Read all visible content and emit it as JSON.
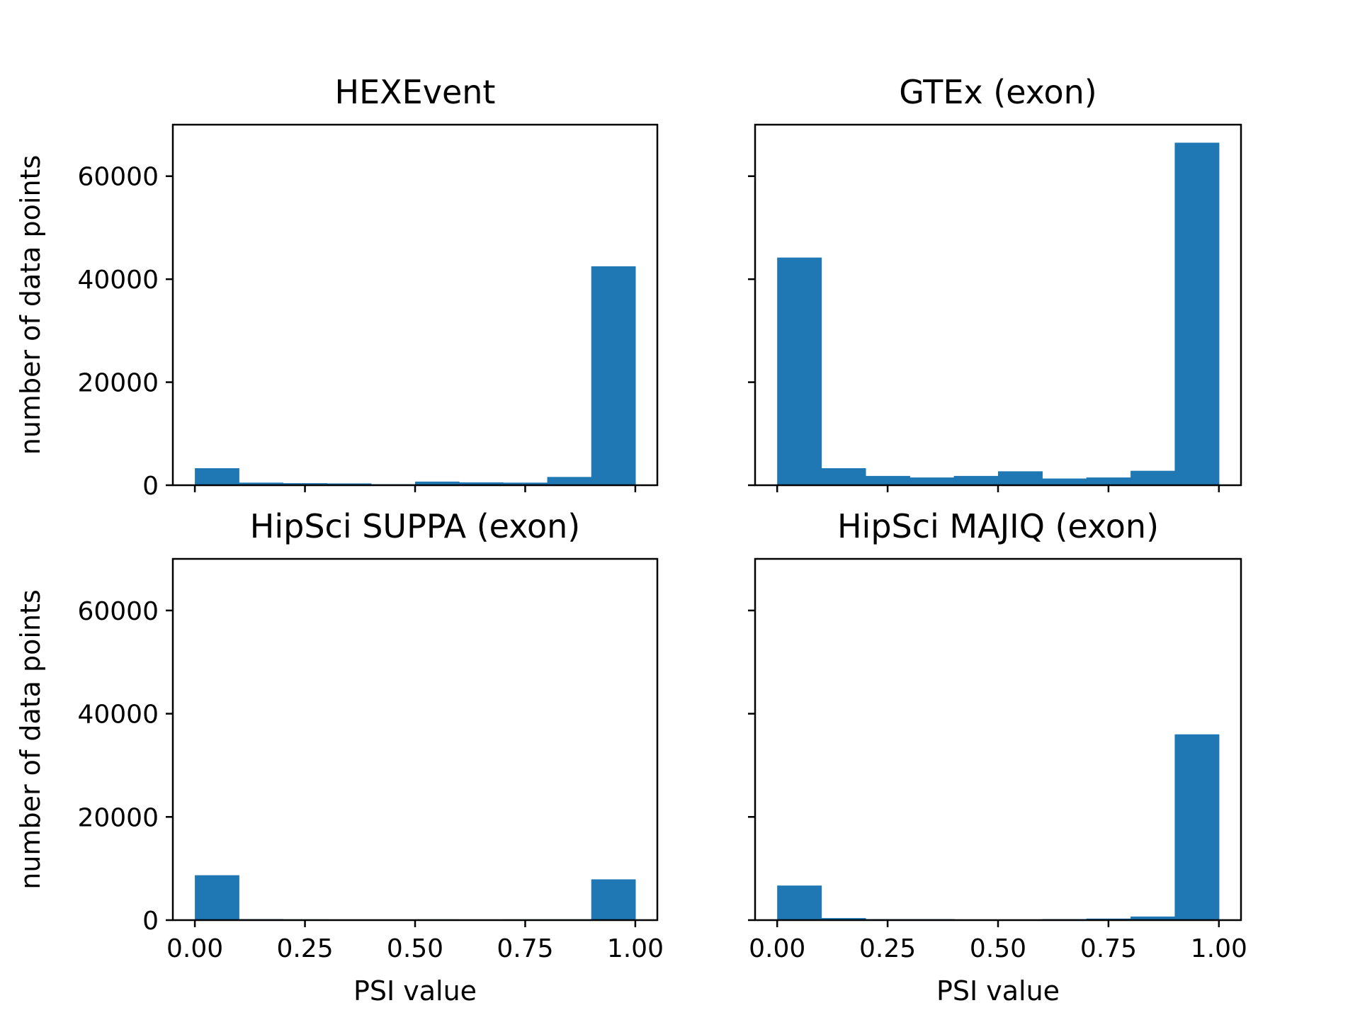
{
  "chart_data": [
    {
      "type": "bar",
      "title": "HEXEvent",
      "xlabel": "",
      "ylabel": "number of data points",
      "bin_edges": [
        0.0,
        0.1,
        0.2,
        0.3,
        0.4,
        0.5,
        0.6,
        0.7,
        0.8,
        0.9,
        1.0
      ],
      "values": [
        3300,
        500,
        400,
        350,
        200,
        700,
        550,
        500,
        1600,
        42500
      ],
      "xticks": [
        0.0,
        0.25,
        0.5,
        0.75,
        1.0
      ],
      "xtick_labels": [],
      "yticks": [
        0,
        20000,
        40000,
        60000
      ],
      "ytick_labels": [
        "0",
        "20000",
        "40000",
        "60000"
      ],
      "xlim": [
        -0.05,
        1.05
      ],
      "ylim": [
        0,
        70000
      ],
      "color": "#1f77b4"
    },
    {
      "type": "bar",
      "title": "GTEx (exon)",
      "xlabel": "",
      "ylabel": "",
      "bin_edges": [
        0.0,
        0.1,
        0.2,
        0.3,
        0.4,
        0.5,
        0.6,
        0.7,
        0.8,
        0.9,
        1.0
      ],
      "values": [
        44200,
        3300,
        1800,
        1500,
        1800,
        2700,
        1300,
        1500,
        2800,
        66500
      ],
      "xticks": [
        0.0,
        0.25,
        0.5,
        0.75,
        1.0
      ],
      "xtick_labels": [],
      "yticks": [
        0,
        20000,
        40000,
        60000
      ],
      "ytick_labels": [],
      "xlim": [
        -0.05,
        1.05
      ],
      "ylim": [
        0,
        70000
      ],
      "color": "#1f77b4"
    },
    {
      "type": "bar",
      "title": "HipSci SUPPA (exon)",
      "xlabel": "PSI value",
      "ylabel": "number of data points",
      "bin_edges": [
        0.0,
        0.1,
        0.2,
        0.3,
        0.4,
        0.5,
        0.6,
        0.7,
        0.8,
        0.9,
        1.0
      ],
      "values": [
        8700,
        200,
        150,
        50,
        50,
        150,
        50,
        150,
        150,
        7900
      ],
      "xticks": [
        0.0,
        0.25,
        0.5,
        0.75,
        1.0
      ],
      "xtick_labels": [
        "0.00",
        "0.25",
        "0.50",
        "0.75",
        "1.00"
      ],
      "yticks": [
        0,
        20000,
        40000,
        60000
      ],
      "ytick_labels": [
        "0",
        "20000",
        "40000",
        "60000"
      ],
      "xlim": [
        -0.05,
        1.05
      ],
      "ylim": [
        0,
        70000
      ],
      "color": "#1f77b4"
    },
    {
      "type": "bar",
      "title": "HipSci MAJIQ (exon)",
      "xlabel": "PSI value",
      "ylabel": "",
      "bin_edges": [
        0.0,
        0.1,
        0.2,
        0.3,
        0.4,
        0.5,
        0.6,
        0.7,
        0.8,
        0.9,
        1.0
      ],
      "values": [
        6700,
        400,
        200,
        200,
        100,
        100,
        200,
        300,
        700,
        36000
      ],
      "xticks": [
        0.0,
        0.25,
        0.5,
        0.75,
        1.0
      ],
      "xtick_labels": [
        "0.00",
        "0.25",
        "0.50",
        "0.75",
        "1.00"
      ],
      "yticks": [
        0,
        20000,
        40000,
        60000
      ],
      "ytick_labels": [],
      "xlim": [
        -0.05,
        1.05
      ],
      "ylim": [
        0,
        70000
      ],
      "color": "#1f77b4"
    }
  ]
}
